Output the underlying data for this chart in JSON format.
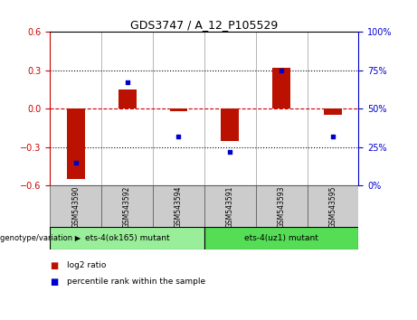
{
  "title": "GDS3747 / A_12_P105529",
  "samples": [
    "GSM543590",
    "GSM543592",
    "GSM543594",
    "GSM543591",
    "GSM543593",
    "GSM543595"
  ],
  "log2_ratio": [
    -0.55,
    0.15,
    -0.02,
    -0.25,
    0.32,
    -0.05
  ],
  "percentile_rank": [
    15,
    67,
    32,
    22,
    75,
    32
  ],
  "ylim_left": [
    -0.6,
    0.6
  ],
  "ylim_right": [
    0,
    100
  ],
  "yticks_left": [
    -0.6,
    -0.3,
    0,
    0.3,
    0.6
  ],
  "yticks_right": [
    0,
    25,
    50,
    75,
    100
  ],
  "ytick_labels_right": [
    "0%",
    "25%",
    "50%",
    "75%",
    "100%"
  ],
  "bar_color": "#bb1100",
  "dot_color": "#0000cc",
  "zero_line_color": "#cc0000",
  "grid_color": "#000000",
  "group1_label": "ets-4(ok165) mutant",
  "group2_label": "ets-4(uz1) mutant",
  "group1_indices": [
    0,
    1,
    2
  ],
  "group2_indices": [
    3,
    4,
    5
  ],
  "group1_color": "#99ee99",
  "group2_color": "#55dd55",
  "genotype_label": "genotype/variation",
  "legend_bar_label": "log2 ratio",
  "legend_dot_label": "percentile rank within the sample",
  "bar_width": 0.35,
  "tick_label_color_left": "#cc0000",
  "tick_label_color_right": "#0000cc",
  "background_color": "#ffffff",
  "plot_bg_color": "#ffffff",
  "sample_box_color": "#cccccc"
}
